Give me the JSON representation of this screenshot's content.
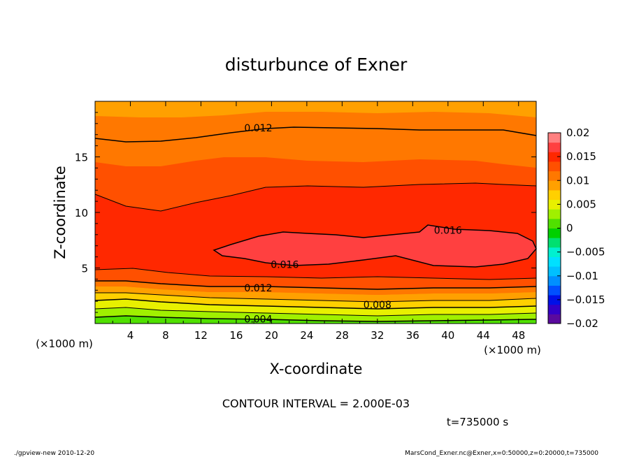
{
  "chart_data": {
    "type": "heatmap",
    "title": "disturbunce of Exner",
    "xlabel": "X-coordinate",
    "ylabel": "Z-coordinate",
    "x_unit_left": "(×1000 m)",
    "x_unit_right": "(×1000 m)",
    "xlim": [
      0,
      50
    ],
    "ylim": [
      0,
      20
    ],
    "x_ticks": [
      4,
      8,
      12,
      16,
      20,
      24,
      28,
      32,
      36,
      40,
      44,
      48
    ],
    "y_ticks": [
      5,
      10,
      15
    ],
    "contour_interval_text": "CONTOUR INTERVAL = 2.000E-03",
    "time_text": "t=735000 s",
    "contour_labels": [
      {
        "text": "0.012",
        "x": 18.5,
        "z": 17.6
      },
      {
        "text": "0.016",
        "x": 40.0,
        "z": 8.4
      },
      {
        "text": "0.016",
        "x": 21.5,
        "z": 5.3
      },
      {
        "text": "0.012",
        "x": 18.5,
        "z": 3.2
      },
      {
        "text": "0.008",
        "x": 32.0,
        "z": 1.7
      },
      {
        "text": "0.004",
        "x": 18.5,
        "z": 0.4
      }
    ],
    "colorbar": {
      "ticks": [
        "0.02",
        "0.015",
        "0.01",
        "0.005",
        "0",
        "−0.005",
        "−0.01",
        "−0.015",
        "−0.02"
      ],
      "levels": [
        -0.02,
        -0.018,
        -0.016,
        -0.014,
        -0.012,
        -0.01,
        -0.008,
        -0.006,
        -0.004,
        -0.002,
        0,
        0.002,
        0.004,
        0.006,
        0.008,
        0.01,
        0.012,
        0.014,
        0.016,
        0.018,
        0.02
      ],
      "colors": [
        "#5a0a9e",
        "#3300c8",
        "#0010e8",
        "#0050ff",
        "#0090ff",
        "#00c0ff",
        "#00e0ff",
        "#00f0d0",
        "#00e070",
        "#00d000",
        "#50e000",
        "#a0f000",
        "#e8f000",
        "#ffd000",
        "#ffa000",
        "#ff7800",
        "#ff5000",
        "#ff2800",
        "#ff4040",
        "#ff8080"
      ]
    },
    "field_bands": [
      {
        "value": 0.001,
        "color": "#50e000"
      },
      {
        "value": 0.003,
        "color": "#a0f000"
      },
      {
        "value": 0.005,
        "color": "#e8f000"
      },
      {
        "value": 0.007,
        "color": "#ffd000"
      },
      {
        "value": 0.009,
        "color": "#ffa000"
      },
      {
        "value": 0.011,
        "color": "#ff7800"
      },
      {
        "value": 0.013,
        "color": "#ff5000"
      },
      {
        "value": 0.015,
        "color": "#ff2800"
      },
      {
        "value": 0.017,
        "color": "#ff4040"
      }
    ]
  },
  "footer": {
    "left": "./gpview-new   2010-12-20",
    "right": "MarsCond_Exner.nc@Exner,x=0:50000,z=0:20000,t=735000"
  }
}
